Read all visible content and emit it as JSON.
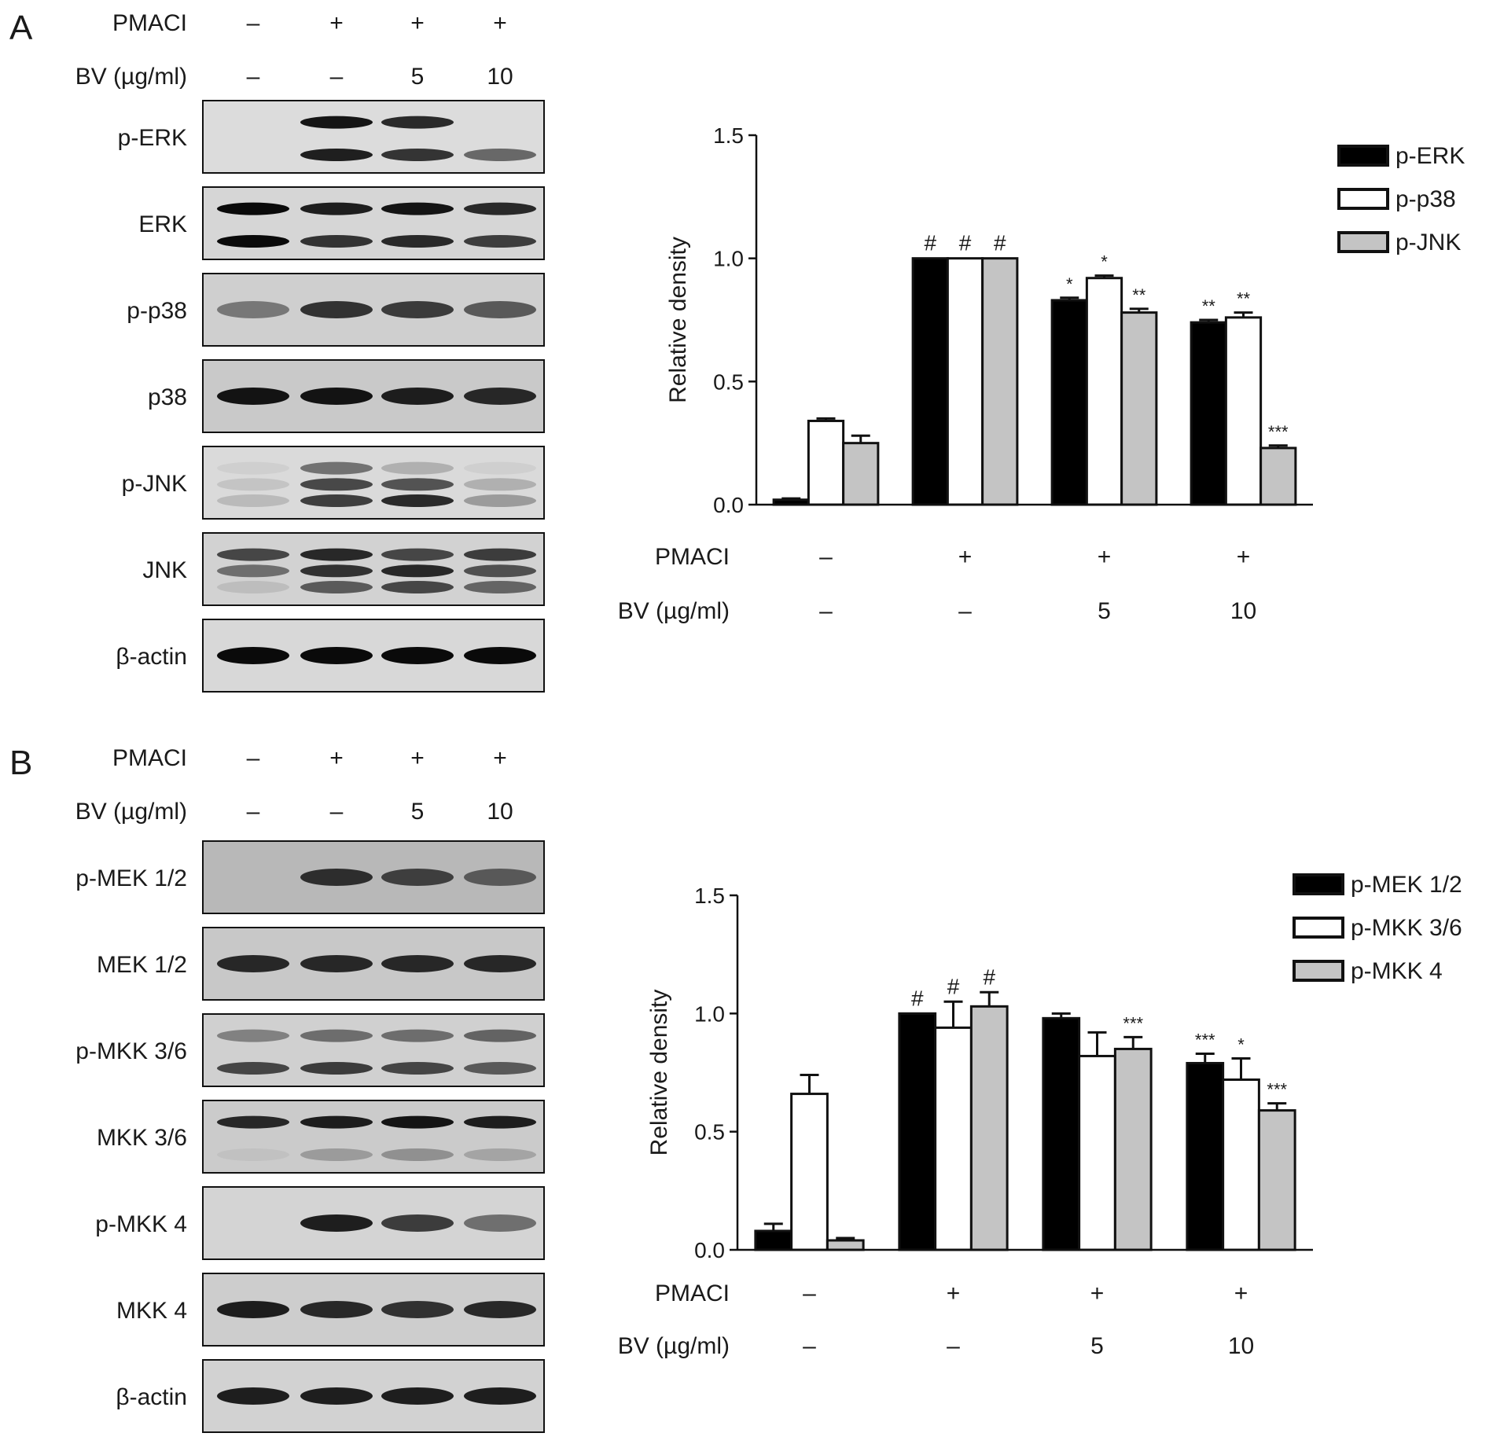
{
  "panels": [
    {
      "letter": "A",
      "row_labels": [
        "PMACI",
        "BV (µg/ml)"
      ],
      "treatments": [
        [
          "–",
          "+",
          "+",
          "+"
        ],
        [
          "–",
          "–",
          "5",
          "10"
        ]
      ],
      "blots": [
        {
          "label": "p-ERK",
          "bg": "#dcdcdc",
          "bands": [
            [
              0,
              0.95,
              0.85
            ],
            [
              0,
              0.9,
              0.8,
              0.55
            ]
          ]
        },
        {
          "label": "ERK",
          "bg": "#d6d6d6",
          "bands": [
            [
              1,
              0.9,
              0.95,
              0.85
            ],
            [
              1,
              0.8,
              0.85,
              0.75
            ]
          ]
        },
        {
          "label": "p-p38",
          "bg": "#cfcfcf",
          "bands": [
            [
              0.45,
              0.8,
              0.75,
              0.6
            ]
          ]
        },
        {
          "label": "p38",
          "bg": "#c9c9c9",
          "bands": [
            [
              0.95,
              0.95,
              0.9,
              0.85
            ]
          ]
        },
        {
          "label": "p-JNK",
          "bg": "#dadada",
          "bands": [
            [
              0.05,
              0.5,
              0.2,
              0.05
            ],
            [
              0.1,
              0.7,
              0.65,
              0.2
            ],
            [
              0.15,
              0.75,
              0.85,
              0.3
            ]
          ]
        },
        {
          "label": "JNK",
          "bg": "#d2d2d2",
          "bands": [
            [
              0.7,
              0.85,
              0.7,
              0.75
            ],
            [
              0.5,
              0.8,
              0.85,
              0.65
            ],
            [
              0.1,
              0.6,
              0.7,
              0.55
            ]
          ]
        },
        {
          "label": "β-actin",
          "bg": "#d8d8d8",
          "bands": [
            [
              1,
              1,
              1,
              1
            ]
          ]
        }
      ],
      "chart_data": {
        "type": "bar",
        "ylabel": "Relative density",
        "ylim": [
          0,
          1.5
        ],
        "yticks": [
          "0.0",
          "0.5",
          "1.0",
          "1.5"
        ],
        "categories": [
          "PMACI – / BV –",
          "PMACI + / BV –",
          "PMACI + / BV 5",
          "PMACI + / BV 10"
        ],
        "x_rows": [
          {
            "label": "PMACI",
            "values": [
              "–",
              "+",
              "+",
              "+"
            ]
          },
          {
            "label": "BV (µg/ml)",
            "values": [
              "–",
              "–",
              "5",
              "10"
            ]
          }
        ],
        "legend_position": "top-right",
        "series": [
          {
            "name": "p-ERK",
            "color": "#000000",
            "values": [
              0.02,
              1.0,
              0.83,
              0.74
            ],
            "errors": [
              0.005,
              0.0,
              0.01,
              0.01
            ],
            "marks": [
              "",
              "#",
              "*",
              "**"
            ]
          },
          {
            "name": "p-p38",
            "color": "#ffffff",
            "values": [
              0.34,
              1.0,
              0.92,
              0.76
            ],
            "errors": [
              0.01,
              0.0,
              0.01,
              0.02
            ],
            "marks": [
              "",
              "#",
              "*",
              "**"
            ]
          },
          {
            "name": "p-JNK",
            "color": "#c4c4c4",
            "values": [
              0.25,
              1.0,
              0.78,
              0.23
            ],
            "errors": [
              0.03,
              0.0,
              0.015,
              0.01
            ],
            "marks": [
              "",
              "#",
              "**",
              "***"
            ]
          }
        ]
      }
    },
    {
      "letter": "B",
      "row_labels": [
        "PMACI",
        "BV (µg/ml)"
      ],
      "treatments": [
        [
          "–",
          "+",
          "+",
          "+"
        ],
        [
          "–",
          "–",
          "5",
          "10"
        ]
      ],
      "blots": [
        {
          "label": "p-MEK 1/2",
          "bg": "#b8b8b8",
          "bands": [
            [
              0,
              0.8,
              0.7,
              0.55
            ]
          ]
        },
        {
          "label": "MEK 1/2",
          "bg": "#c8c8c8",
          "bands": [
            [
              0.85,
              0.85,
              0.85,
              0.85
            ]
          ]
        },
        {
          "label": "p-MKK 3/6",
          "bg": "#d0d0d0",
          "bands": [
            [
              0.4,
              0.5,
              0.5,
              0.55
            ],
            [
              0.7,
              0.75,
              0.7,
              0.6
            ]
          ]
        },
        {
          "label": "MKK 3/6",
          "bg": "#cbcbcb",
          "bands": [
            [
              0.85,
              0.9,
              0.95,
              0.9
            ],
            [
              0.05,
              0.25,
              0.3,
              0.2
            ]
          ]
        },
        {
          "label": "p-MKK 4",
          "bg": "#d4d4d4",
          "bands": [
            [
              0,
              0.9,
              0.75,
              0.5
            ]
          ]
        },
        {
          "label": "MKK 4",
          "bg": "#cdcdcd",
          "bands": [
            [
              0.9,
              0.85,
              0.8,
              0.85
            ]
          ]
        },
        {
          "label": "β-actin",
          "bg": "#d2d2d2",
          "bands": [
            [
              0.9,
              0.9,
              0.9,
              0.9
            ]
          ]
        }
      ],
      "chart_data": {
        "type": "bar",
        "ylabel": "Relative density",
        "ylim": [
          0,
          1.5
        ],
        "yticks": [
          "0.0",
          "0.5",
          "1.0",
          "1.5"
        ],
        "categories": [
          "PMACI – / BV –",
          "PMACI + / BV –",
          "PMACI + / BV 5",
          "PMACI + / BV 10"
        ],
        "x_rows": [
          {
            "label": "PMACI",
            "values": [
              "–",
              "+",
              "+",
              "+"
            ]
          },
          {
            "label": "BV (µg/ml)",
            "values": [
              "–",
              "–",
              "5",
              "10"
            ]
          }
        ],
        "legend_position": "top-right",
        "series": [
          {
            "name": "p-MEK 1/2",
            "color": "#000000",
            "values": [
              0.08,
              1.0,
              0.98,
              0.79
            ],
            "errors": [
              0.03,
              0.0,
              0.02,
              0.04
            ],
            "marks": [
              "",
              "#",
              "",
              "***"
            ]
          },
          {
            "name": "p-MKK 3/6",
            "color": "#ffffff",
            "values": [
              0.66,
              0.94,
              0.82,
              0.72
            ],
            "errors": [
              0.08,
              0.11,
              0.1,
              0.09
            ],
            "marks": [
              "",
              "#",
              "",
              "*"
            ]
          },
          {
            "name": "p-MKK 4",
            "color": "#c4c4c4",
            "values": [
              0.04,
              1.03,
              0.85,
              0.59
            ],
            "errors": [
              0.01,
              0.06,
              0.05,
              0.03
            ],
            "marks": [
              "",
              "#",
              "***",
              "***"
            ]
          }
        ]
      }
    }
  ]
}
